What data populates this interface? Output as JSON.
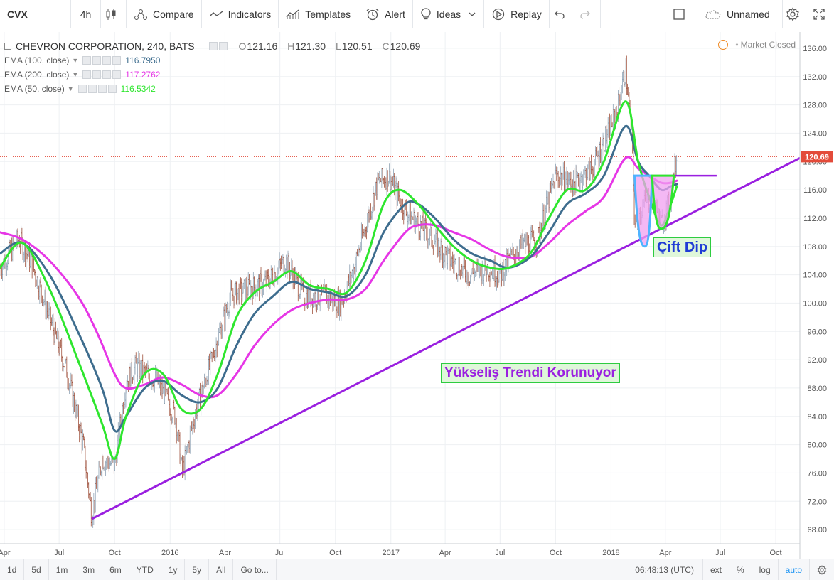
{
  "toolbar": {
    "symbol": "CVX",
    "interval": "4h",
    "compare": "Compare",
    "indicators": "Indicators",
    "templates": "Templates",
    "alert": "Alert",
    "ideas": "Ideas",
    "replay": "Replay",
    "layout_name": "Unnamed"
  },
  "legend": {
    "title": "CHEVRON CORPORATION, 240, BATS",
    "open_label": "O",
    "open": "121.16",
    "high_label": "H",
    "high": "121.30",
    "low_label": "L",
    "low": "120.51",
    "close_label": "C",
    "close": "120.69",
    "indicators": [
      {
        "label": "EMA (100, close)",
        "value": "116.7950",
        "color": "#3e6d8e"
      },
      {
        "label": "EMA (200, close)",
        "value": "117.2762",
        "color": "#e636e6"
      },
      {
        "label": "EMA (50, close)",
        "value": "116.5342",
        "color": "#2ee62e"
      }
    ]
  },
  "market_status": "Market Closed",
  "annotations": {
    "double_bottom": "Çift Dip",
    "trend": "Yükseliş Trendi Korunuyor"
  },
  "chart_data": {
    "type": "line",
    "price_axis": {
      "min": 66,
      "max": 137.5,
      "ticks": [
        68,
        72,
        76,
        80,
        84,
        88,
        92,
        96,
        100,
        104,
        108,
        112,
        116,
        120,
        124,
        128,
        132,
        136
      ],
      "tick_labels": [
        "68.00",
        "72.00",
        "76.00",
        "80.00",
        "84.00",
        "88.00",
        "92.00",
        "96.00",
        "100.00",
        "104.00",
        "108.00",
        "112.00",
        "116.00",
        "120.00",
        "124.00",
        "128.00",
        "132.00",
        "136.00"
      ]
    },
    "time_axis": {
      "start": "2015-03-25",
      "end": "2018-11-10",
      "ticks": [
        {
          "date": "2015-04-01",
          "label": "Apr"
        },
        {
          "date": "2015-07-01",
          "label": "Jul"
        },
        {
          "date": "2015-10-01",
          "label": "Oct"
        },
        {
          "date": "2016-01-01",
          "label": "2016"
        },
        {
          "date": "2016-04-01",
          "label": "Apr"
        },
        {
          "date": "2016-07-01",
          "label": "Jul"
        },
        {
          "date": "2016-10-01",
          "label": "Oct"
        },
        {
          "date": "2017-01-01",
          "label": "2017"
        },
        {
          "date": "2017-04-01",
          "label": "Apr"
        },
        {
          "date": "2017-07-01",
          "label": "Jul"
        },
        {
          "date": "2017-10-01",
          "label": "Oct"
        },
        {
          "date": "2018-01-01",
          "label": "2018"
        },
        {
          "date": "2018-04-01",
          "label": "Apr"
        },
        {
          "date": "2018-07-01",
          "label": "Jul"
        },
        {
          "date": "2018-10-01",
          "label": "Oct"
        }
      ]
    },
    "last_price": {
      "value": 120.69,
      "label": "120.69",
      "color": "#e34b3a"
    },
    "price": [
      {
        "date": "2015-03-25",
        "value": 105
      },
      {
        "date": "2015-04-25",
        "value": 109
      },
      {
        "date": "2015-05-15",
        "value": 106
      },
      {
        "date": "2015-06-15",
        "value": 98
      },
      {
        "date": "2015-07-15",
        "value": 90
      },
      {
        "date": "2015-08-10",
        "value": 80
      },
      {
        "date": "2015-08-24",
        "value": 70
      },
      {
        "date": "2015-09-10",
        "value": 78
      },
      {
        "date": "2015-10-01",
        "value": 77
      },
      {
        "date": "2015-10-20",
        "value": 89
      },
      {
        "date": "2015-11-05",
        "value": 91
      },
      {
        "date": "2015-12-10",
        "value": 89
      },
      {
        "date": "2016-01-10",
        "value": 84
      },
      {
        "date": "2016-01-21",
        "value": 76
      },
      {
        "date": "2016-02-10",
        "value": 84
      },
      {
        "date": "2016-03-10",
        "value": 92
      },
      {
        "date": "2016-04-10",
        "value": 101
      },
      {
        "date": "2016-05-10",
        "value": 102
      },
      {
        "date": "2016-06-10",
        "value": 103
      },
      {
        "date": "2016-07-10",
        "value": 106
      },
      {
        "date": "2016-08-10",
        "value": 101
      },
      {
        "date": "2016-09-10",
        "value": 101
      },
      {
        "date": "2016-10-10",
        "value": 100
      },
      {
        "date": "2016-11-01",
        "value": 105
      },
      {
        "date": "2016-12-10",
        "value": 117
      },
      {
        "date": "2016-12-28",
        "value": 118
      },
      {
        "date": "2017-01-25",
        "value": 113
      },
      {
        "date": "2017-03-01",
        "value": 110
      },
      {
        "date": "2017-04-10",
        "value": 106
      },
      {
        "date": "2017-05-10",
        "value": 104
      },
      {
        "date": "2017-06-10",
        "value": 105
      },
      {
        "date": "2017-07-01",
        "value": 104
      },
      {
        "date": "2017-08-01",
        "value": 108
      },
      {
        "date": "2017-09-01",
        "value": 109
      },
      {
        "date": "2017-10-01",
        "value": 118
      },
      {
        "date": "2017-11-01",
        "value": 117
      },
      {
        "date": "2017-12-01",
        "value": 119
      },
      {
        "date": "2018-01-10",
        "value": 127
      },
      {
        "date": "2018-01-25",
        "value": 133
      },
      {
        "date": "2018-02-05",
        "value": 123
      },
      {
        "date": "2018-02-09",
        "value": 111
      },
      {
        "date": "2018-02-25",
        "value": 114
      },
      {
        "date": "2018-03-10",
        "value": 115
      },
      {
        "date": "2018-03-25",
        "value": 111
      },
      {
        "date": "2018-04-10",
        "value": 115
      },
      {
        "date": "2018-04-20",
        "value": 120.69
      }
    ],
    "series": [
      {
        "name": "EMA (50, close)",
        "color": "#2ee62e",
        "points": [
          {
            "date": "2015-03-25",
            "value": 105
          },
          {
            "date": "2015-05-01",
            "value": 108.5
          },
          {
            "date": "2015-06-15",
            "value": 102
          },
          {
            "date": "2015-08-01",
            "value": 92
          },
          {
            "date": "2015-09-10",
            "value": 83
          },
          {
            "date": "2015-10-01",
            "value": 78
          },
          {
            "date": "2015-10-20",
            "value": 84
          },
          {
            "date": "2015-11-20",
            "value": 90
          },
          {
            "date": "2015-12-20",
            "value": 90
          },
          {
            "date": "2016-01-20",
            "value": 85
          },
          {
            "date": "2016-02-20",
            "value": 85
          },
          {
            "date": "2016-03-20",
            "value": 90
          },
          {
            "date": "2016-04-20",
            "value": 98
          },
          {
            "date": "2016-05-20",
            "value": 101.5
          },
          {
            "date": "2016-06-20",
            "value": 103
          },
          {
            "date": "2016-07-20",
            "value": 104.5
          },
          {
            "date": "2016-08-20",
            "value": 102.5
          },
          {
            "date": "2016-09-20",
            "value": 102
          },
          {
            "date": "2016-10-20",
            "value": 101.5
          },
          {
            "date": "2016-11-20",
            "value": 106
          },
          {
            "date": "2016-12-20",
            "value": 114
          },
          {
            "date": "2017-01-15",
            "value": 116
          },
          {
            "date": "2017-02-15",
            "value": 114
          },
          {
            "date": "2017-03-15",
            "value": 111
          },
          {
            "date": "2017-04-15",
            "value": 108
          },
          {
            "date": "2017-05-15",
            "value": 106
          },
          {
            "date": "2017-06-15",
            "value": 105
          },
          {
            "date": "2017-07-15",
            "value": 105
          },
          {
            "date": "2017-08-20",
            "value": 107
          },
          {
            "date": "2017-09-20",
            "value": 112
          },
          {
            "date": "2017-10-20",
            "value": 116
          },
          {
            "date": "2017-11-20",
            "value": 116
          },
          {
            "date": "2017-12-20",
            "value": 120
          },
          {
            "date": "2018-01-25",
            "value": 128.5
          },
          {
            "date": "2018-02-15",
            "value": 120
          },
          {
            "date": "2018-03-05",
            "value": 115
          },
          {
            "date": "2018-03-25",
            "value": 111
          },
          {
            "date": "2018-04-10",
            "value": 114
          },
          {
            "date": "2018-04-20",
            "value": 116.5
          }
        ]
      },
      {
        "name": "EMA (100, close)",
        "color": "#3e6d8e",
        "points": [
          {
            "date": "2015-03-25",
            "value": 107
          },
          {
            "date": "2015-05-01",
            "value": 108.5
          },
          {
            "date": "2015-06-15",
            "value": 104
          },
          {
            "date": "2015-08-01",
            "value": 96
          },
          {
            "date": "2015-09-10",
            "value": 88
          },
          {
            "date": "2015-10-01",
            "value": 82
          },
          {
            "date": "2015-10-20",
            "value": 84
          },
          {
            "date": "2015-11-20",
            "value": 88
          },
          {
            "date": "2015-12-20",
            "value": 89
          },
          {
            "date": "2016-01-20",
            "value": 87
          },
          {
            "date": "2016-02-20",
            "value": 86
          },
          {
            "date": "2016-03-20",
            "value": 88
          },
          {
            "date": "2016-04-20",
            "value": 94
          },
          {
            "date": "2016-05-20",
            "value": 98.5
          },
          {
            "date": "2016-06-20",
            "value": 101
          },
          {
            "date": "2016-07-20",
            "value": 103
          },
          {
            "date": "2016-08-20",
            "value": 102
          },
          {
            "date": "2016-09-20",
            "value": 101.5
          },
          {
            "date": "2016-10-20",
            "value": 101
          },
          {
            "date": "2016-11-20",
            "value": 104
          },
          {
            "date": "2016-12-20",
            "value": 110
          },
          {
            "date": "2017-01-25",
            "value": 114
          },
          {
            "date": "2017-02-15",
            "value": 114
          },
          {
            "date": "2017-03-15",
            "value": 112
          },
          {
            "date": "2017-04-15",
            "value": 109
          },
          {
            "date": "2017-05-15",
            "value": 107
          },
          {
            "date": "2017-06-15",
            "value": 106
          },
          {
            "date": "2017-07-15",
            "value": 105
          },
          {
            "date": "2017-08-20",
            "value": 106.5
          },
          {
            "date": "2017-09-20",
            "value": 110
          },
          {
            "date": "2017-10-20",
            "value": 114
          },
          {
            "date": "2017-11-20",
            "value": 115.5
          },
          {
            "date": "2017-12-20",
            "value": 118
          },
          {
            "date": "2018-01-25",
            "value": 125
          },
          {
            "date": "2018-02-15",
            "value": 120
          },
          {
            "date": "2018-03-05",
            "value": 118
          },
          {
            "date": "2018-03-25",
            "value": 116
          },
          {
            "date": "2018-04-10",
            "value": 116.5
          },
          {
            "date": "2018-04-20",
            "value": 116.8
          }
        ]
      },
      {
        "name": "EMA (200, close)",
        "color": "#e636e6",
        "points": [
          {
            "date": "2015-03-25",
            "value": 110
          },
          {
            "date": "2015-05-01",
            "value": 109
          },
          {
            "date": "2015-06-15",
            "value": 106
          },
          {
            "date": "2015-08-01",
            "value": 101
          },
          {
            "date": "2015-09-01",
            "value": 96
          },
          {
            "date": "2015-10-01",
            "value": 90
          },
          {
            "date": "2015-10-20",
            "value": 88
          },
          {
            "date": "2015-11-20",
            "value": 88.5
          },
          {
            "date": "2015-12-20",
            "value": 89.5
          },
          {
            "date": "2016-01-20",
            "value": 88.5
          },
          {
            "date": "2016-02-20",
            "value": 87
          },
          {
            "date": "2016-03-20",
            "value": 87
          },
          {
            "date": "2016-04-20",
            "value": 90
          },
          {
            "date": "2016-05-20",
            "value": 94
          },
          {
            "date": "2016-06-20",
            "value": 97
          },
          {
            "date": "2016-07-20",
            "value": 99
          },
          {
            "date": "2016-08-20",
            "value": 100
          },
          {
            "date": "2016-09-20",
            "value": 100.5
          },
          {
            "date": "2016-10-20",
            "value": 100.5
          },
          {
            "date": "2016-11-20",
            "value": 102
          },
          {
            "date": "2016-12-20",
            "value": 106
          },
          {
            "date": "2017-01-25",
            "value": 110
          },
          {
            "date": "2017-02-15",
            "value": 111
          },
          {
            "date": "2017-03-15",
            "value": 111
          },
          {
            "date": "2017-04-15",
            "value": 110
          },
          {
            "date": "2017-05-15",
            "value": 109
          },
          {
            "date": "2017-06-15",
            "value": 107.5
          },
          {
            "date": "2017-07-15",
            "value": 106.5
          },
          {
            "date": "2017-08-20",
            "value": 106.5
          },
          {
            "date": "2017-09-20",
            "value": 108.5
          },
          {
            "date": "2017-10-20",
            "value": 111
          },
          {
            "date": "2017-11-20",
            "value": 113
          },
          {
            "date": "2017-12-20",
            "value": 115
          },
          {
            "date": "2018-01-25",
            "value": 120.5
          },
          {
            "date": "2018-02-15",
            "value": 119
          },
          {
            "date": "2018-03-05",
            "value": 118
          },
          {
            "date": "2018-03-25",
            "value": 117
          },
          {
            "date": "2018-04-10",
            "value": 117
          },
          {
            "date": "2018-04-20",
            "value": 117.3
          }
        ]
      }
    ],
    "drawings": {
      "trendline": {
        "color": "#9a1fe0",
        "start": {
          "date": "2015-08-24",
          "value": 69.5
        },
        "end": {
          "date": "2018-11-10",
          "value": 120.5
        }
      },
      "neckline": {
        "color": "#9a1fe0",
        "start": {
          "date": "2018-02-09",
          "value": 118
        },
        "end": {
          "date": "2018-06-25",
          "value": 118
        }
      },
      "left_bottom": {
        "color": "#4fb3ff",
        "fill": "#f0a0f0",
        "start": "2018-02-09",
        "low_date": "2018-02-26",
        "low": 108,
        "end": "2018-03-10",
        "top": 118
      },
      "right_bottom": {
        "color": "#2ee62e",
        "fill": "#f0a0f0",
        "start": "2018-03-10",
        "low_date": "2018-03-25",
        "low": 110.5,
        "end": "2018-04-15",
        "top": 118
      }
    }
  },
  "bottom": {
    "ranges": [
      "1d",
      "5d",
      "1m",
      "3m",
      "6m",
      "YTD",
      "1y",
      "5y",
      "All"
    ],
    "goto": "Go to...",
    "time": "06:48:13 (UTC)",
    "options": [
      "ext",
      "%",
      "log",
      "auto"
    ]
  }
}
